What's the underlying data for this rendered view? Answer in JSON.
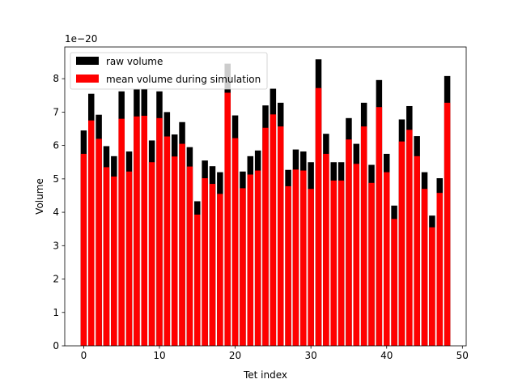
{
  "chart_data": {
    "type": "bar",
    "xlabel": "Tet index",
    "ylabel": "Volume",
    "offset_label": "1e−20",
    "xlim": [
      -2.5,
      50.5
    ],
    "ylim": [
      0,
      8.95
    ],
    "xticks": [
      0,
      10,
      20,
      30,
      40,
      50
    ],
    "yticks": [
      0,
      1,
      2,
      3,
      4,
      5,
      6,
      7,
      8
    ],
    "grid": false,
    "legend_position": "upper-left",
    "x": [
      0,
      1,
      2,
      3,
      4,
      5,
      6,
      7,
      8,
      9,
      10,
      11,
      12,
      13,
      14,
      15,
      16,
      17,
      18,
      19,
      20,
      21,
      22,
      23,
      24,
      25,
      26,
      27,
      28,
      29,
      30,
      31,
      32,
      33,
      34,
      35,
      36,
      37,
      38,
      39,
      40,
      41,
      42,
      43,
      44,
      45,
      46,
      47,
      48
    ],
    "series": [
      {
        "name": "raw volume",
        "color": "#000000",
        "values": [
          6.45,
          7.55,
          6.92,
          5.98,
          5.68,
          7.62,
          5.82,
          7.68,
          7.7,
          6.15,
          7.62,
          7.0,
          6.33,
          6.7,
          5.95,
          4.33,
          5.55,
          5.38,
          5.2,
          8.45,
          6.9,
          5.22,
          5.68,
          5.85,
          7.2,
          7.7,
          7.28,
          5.27,
          5.88,
          5.82,
          5.5,
          8.58,
          6.35,
          5.5,
          5.5,
          6.82,
          6.05,
          7.28,
          5.42,
          7.96,
          5.75,
          4.2,
          6.78,
          7.18,
          6.28,
          5.2,
          3.9,
          5.02,
          8.08
        ]
      },
      {
        "name": "mean volume during simulation",
        "color": "#ff0000",
        "values": [
          5.75,
          6.75,
          6.2,
          5.35,
          5.07,
          6.8,
          5.22,
          6.87,
          6.89,
          5.5,
          6.82,
          6.27,
          5.67,
          6.05,
          5.37,
          3.93,
          5.02,
          4.85,
          4.55,
          7.58,
          6.22,
          4.72,
          5.13,
          5.25,
          6.53,
          6.93,
          6.57,
          4.78,
          5.28,
          5.25,
          4.7,
          7.72,
          5.75,
          4.95,
          4.95,
          6.18,
          5.45,
          6.57,
          4.88,
          7.15,
          5.2,
          3.8,
          6.12,
          6.47,
          5.68,
          4.7,
          3.55,
          4.58,
          7.28
        ]
      }
    ]
  }
}
